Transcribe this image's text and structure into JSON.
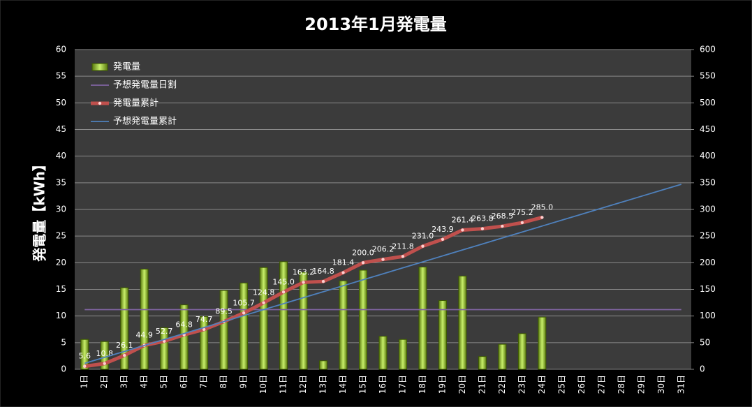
{
  "chart_data": {
    "type": "bar",
    "title": "2013年1月発電量",
    "y_label": "発電量【kWh】",
    "categories": [
      "1日",
      "2日",
      "3日",
      "4日",
      "5日",
      "6日",
      "7日",
      "8日",
      "9日",
      "10日",
      "11日",
      "12日",
      "13日",
      "14日",
      "15日",
      "16日",
      "17日",
      "18日",
      "19日",
      "20日",
      "21日",
      "22日",
      "23日",
      "24日",
      "25日",
      "26日",
      "27日",
      "28日",
      "29日",
      "30日",
      "31日"
    ],
    "series": [
      {
        "name": "発電量",
        "type": "bar",
        "color": "#9acd32",
        "values": [
          5.6,
          5.2,
          15.3,
          18.8,
          7.8,
          12.1,
          9.9,
          14.8,
          16.2,
          19.1,
          20.2,
          18.2,
          1.6,
          16.6,
          18.6,
          6.2,
          5.6,
          19.2,
          12.9,
          17.5,
          2.4,
          4.7,
          6.7,
          9.8,
          null,
          null,
          null,
          null,
          null,
          null,
          null
        ]
      },
      {
        "name": "予想発電量日割",
        "type": "line",
        "color": "#8064a2",
        "values": [
          11.2,
          11.2,
          11.2,
          11.2,
          11.2,
          11.2,
          11.2,
          11.2,
          11.2,
          11.2,
          11.2,
          11.2,
          11.2,
          11.2,
          11.2,
          11.2,
          11.2,
          11.2,
          11.2,
          11.2,
          11.2,
          11.2,
          11.2,
          11.2,
          11.2,
          11.2,
          11.2,
          11.2,
          11.2,
          11.2,
          11.2
        ]
      },
      {
        "name": "発電量累計",
        "type": "line",
        "axis": "y2",
        "color": "#c0504d",
        "markers": true,
        "values": [
          5.6,
          10.8,
          26.1,
          44.9,
          52.7,
          64.8,
          74.7,
          89.5,
          105.7,
          124.8,
          145.0,
          163.2,
          164.8,
          181.4,
          200.0,
          206.2,
          211.8,
          231.0,
          243.9,
          261.4,
          263.8,
          268.5,
          275.2,
          285.0,
          null,
          null,
          null,
          null,
          null,
          null,
          null
        ],
        "value_labels": [
          "5.6",
          "10.8",
          "26.1",
          "44.9",
          "52.7",
          "64.8",
          "74.7",
          "89.5",
          "105.7",
          "124.8",
          "145.0",
          "163.2",
          "164.8",
          "181.4",
          "200.0",
          "206.2",
          "211.8",
          "231.0",
          "243.9",
          "261.4",
          "263.8",
          "268.5",
          "275.2",
          "285.0",
          null,
          null,
          null,
          null,
          null,
          null,
          null
        ]
      },
      {
        "name": "予想発電量累計",
        "type": "line",
        "axis": "y2",
        "color": "#4f81bd",
        "values": [
          11.2,
          22.4,
          33.6,
          44.8,
          56.0,
          67.2,
          78.4,
          89.6,
          100.8,
          112.0,
          123.2,
          134.4,
          145.6,
          156.8,
          168.0,
          179.2,
          190.4,
          201.6,
          212.8,
          224.0,
          235.2,
          246.4,
          257.6,
          268.8,
          280.0,
          291.2,
          302.4,
          313.6,
          324.8,
          336.0,
          347.2
        ]
      }
    ],
    "ylim": [
      0,
      60
    ],
    "yticks": [
      0,
      5,
      10,
      15,
      20,
      25,
      30,
      35,
      40,
      45,
      50,
      55,
      60
    ],
    "y2lim": [
      0,
      600
    ],
    "y2ticks": [
      0,
      50,
      100,
      150,
      200,
      250,
      300,
      350,
      400,
      450,
      500,
      550,
      600
    ],
    "grid": true,
    "legend": "top-left"
  }
}
